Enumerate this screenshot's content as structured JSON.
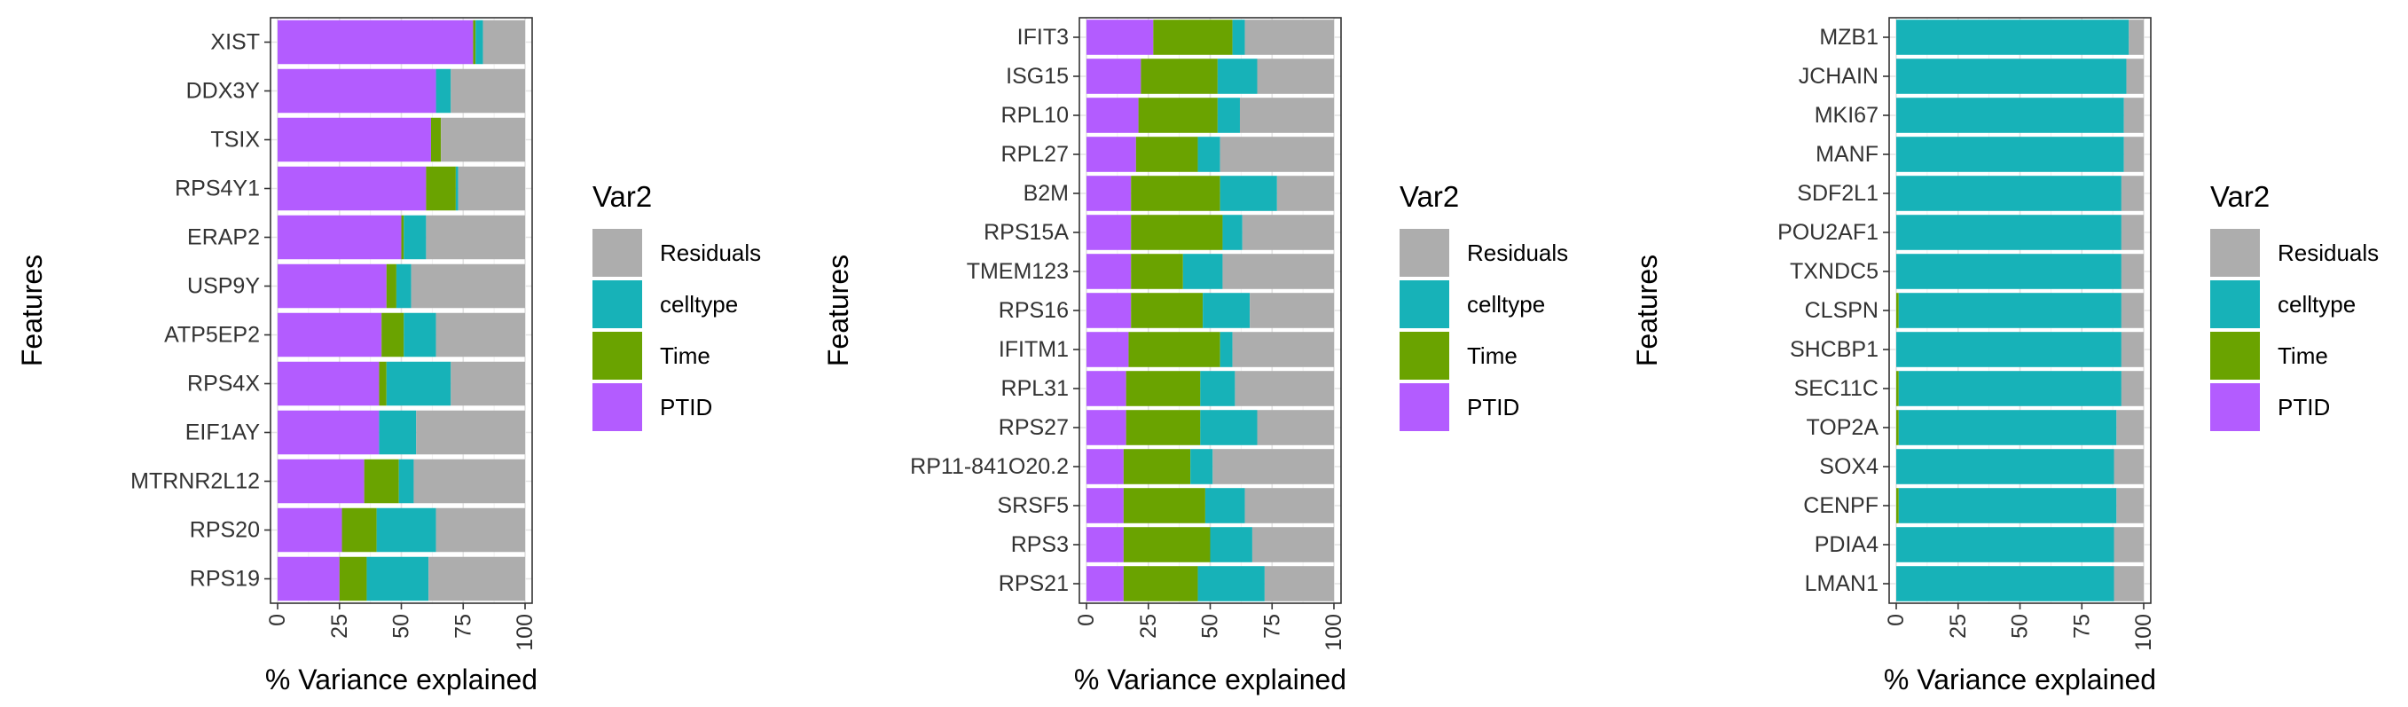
{
  "chart_data": [
    {
      "type": "bar",
      "orientation": "horizontal",
      "stacked": true,
      "xlabel": "% Variance explained",
      "ylabel": "Features",
      "xlim": [
        0,
        100
      ],
      "xticks": [
        "0",
        "25",
        "50",
        "75",
        "100"
      ],
      "grid": true,
      "legend": {
        "title": "Var2",
        "position": "right",
        "entries": [
          "Residuals",
          "celltype",
          "Time",
          "PTID"
        ]
      },
      "categories": [
        "XIST",
        "DDX3Y",
        "TSIX",
        "RPS4Y1",
        "ERAP2",
        "USP9Y",
        "ATP5EP2",
        "RPS4X",
        "EIF1AY",
        "MTRNR2L12",
        "RPS20",
        "RPS19"
      ],
      "series": [
        {
          "name": "PTID",
          "color": "#b35cff",
          "values": [
            79,
            64,
            62,
            60,
            50,
            44,
            42,
            41,
            41,
            35,
            26,
            25
          ]
        },
        {
          "name": "Time",
          "color": "#6aa300",
          "values": [
            1,
            0,
            4,
            12,
            1,
            4,
            9,
            3,
            0,
            14,
            14,
            11
          ]
        },
        {
          "name": "celltype",
          "color": "#17b2b8",
          "values": [
            3,
            6,
            0,
            1,
            9,
            6,
            13,
            26,
            15,
            6,
            24,
            25
          ]
        },
        {
          "name": "Residuals",
          "color": "#adadad",
          "values": [
            17,
            30,
            34,
            27,
            40,
            46,
            36,
            30,
            44,
            45,
            36,
            39
          ]
        }
      ]
    },
    {
      "type": "bar",
      "orientation": "horizontal",
      "stacked": true,
      "xlabel": "% Variance explained",
      "ylabel": "Features",
      "xlim": [
        0,
        100
      ],
      "xticks": [
        "0",
        "25",
        "50",
        "75",
        "100"
      ],
      "grid": true,
      "legend": {
        "title": "Var2",
        "position": "right",
        "entries": [
          "Residuals",
          "celltype",
          "Time",
          "PTID"
        ]
      },
      "categories": [
        "IFIT3",
        "ISG15",
        "RPL10",
        "RPL27",
        "B2M",
        "RPS15A",
        "TMEM123",
        "RPS16",
        "IFITM1",
        "RPL31",
        "RPS27",
        "RP11-841O20.2",
        "SRSF5",
        "RPS3",
        "RPS21"
      ],
      "series": [
        {
          "name": "PTID",
          "color": "#b35cff",
          "values": [
            27,
            22,
            21,
            20,
            18,
            18,
            18,
            18,
            17,
            16,
            16,
            15,
            15,
            15,
            15
          ]
        },
        {
          "name": "Time",
          "color": "#6aa300",
          "values": [
            32,
            31,
            32,
            25,
            36,
            37,
            21,
            29,
            37,
            30,
            30,
            27,
            33,
            35,
            30
          ]
        },
        {
          "name": "celltype",
          "color": "#17b2b8",
          "values": [
            5,
            16,
            9,
            9,
            23,
            8,
            16,
            19,
            5,
            14,
            23,
            9,
            16,
            17,
            27
          ]
        },
        {
          "name": "Residuals",
          "color": "#adadad",
          "values": [
            36,
            31,
            38,
            46,
            23,
            37,
            45,
            34,
            41,
            40,
            31,
            49,
            36,
            33,
            28
          ]
        }
      ]
    },
    {
      "type": "bar",
      "orientation": "horizontal",
      "stacked": true,
      "xlabel": "% Variance explained",
      "ylabel": "Features",
      "xlim": [
        0,
        100
      ],
      "xticks": [
        "0",
        "25",
        "50",
        "75",
        "100"
      ],
      "grid": true,
      "legend": {
        "title": "Var2",
        "position": "right",
        "entries": [
          "Residuals",
          "celltype",
          "Time",
          "PTID"
        ]
      },
      "categories": [
        "MZB1",
        "JCHAIN",
        "MKI67",
        "MANF",
        "SDF2L1",
        "POU2AF1",
        "TXNDC5",
        "CLSPN",
        "SHCBP1",
        "SEC11C",
        "TOP2A",
        "SOX4",
        "CENPF",
        "PDIA4",
        "LMAN1"
      ],
      "series": [
        {
          "name": "PTID",
          "color": "#b35cff",
          "values": [
            0,
            0,
            0,
            0,
            0,
            0,
            0,
            0,
            0,
            0,
            0,
            0,
            0,
            0,
            0
          ]
        },
        {
          "name": "Time",
          "color": "#6aa300",
          "values": [
            0,
            0,
            0,
            0,
            0,
            0,
            0,
            1,
            0,
            1,
            1,
            0,
            1,
            0,
            0
          ]
        },
        {
          "name": "celltype",
          "color": "#17b2b8",
          "values": [
            94,
            93,
            92,
            92,
            91,
            91,
            91,
            90,
            91,
            90,
            88,
            88,
            88,
            88,
            88
          ]
        },
        {
          "name": "Residuals",
          "color": "#adadad",
          "values": [
            6,
            7,
            8,
            8,
            9,
            9,
            9,
            9,
            9,
            9,
            11,
            12,
            11,
            12,
            12
          ]
        }
      ]
    }
  ]
}
